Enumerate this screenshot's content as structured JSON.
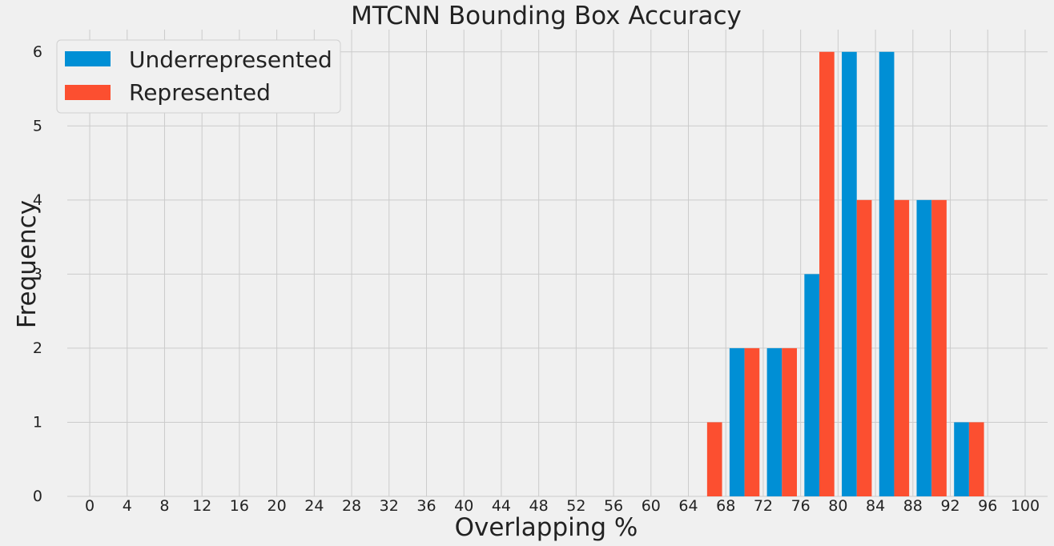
{
  "chart_data": {
    "type": "bar",
    "title": "MTCNN Bounding Box Accuracy",
    "xlabel": "Overlapping %",
    "ylabel": "Frequency",
    "x_ticks": [
      "0",
      "4",
      "8",
      "12",
      "16",
      "20",
      "24",
      "28",
      "32",
      "36",
      "40",
      "44",
      "48",
      "52",
      "56",
      "60",
      "64",
      "68",
      "72",
      "76",
      "80",
      "84",
      "88",
      "92",
      "96",
      "100"
    ],
    "y_ticks": [
      "0",
      "1",
      "2",
      "3",
      "4",
      "5",
      "6"
    ],
    "xlim": [
      -2.4,
      102.4
    ],
    "ylim": [
      0,
      6.3
    ],
    "grid": true,
    "legend_position": "top-left",
    "bin_starts": [
      64,
      68,
      72,
      76,
      80,
      84,
      88,
      92
    ],
    "bin_width": 4,
    "series": [
      {
        "name": "Underrepresented",
        "color": "#008fd5",
        "values": [
          0,
          2,
          2,
          3,
          6,
          6,
          4,
          1
        ]
      },
      {
        "name": "Represented",
        "color": "#fc4f30",
        "values": [
          1,
          2,
          2,
          6,
          4,
          4,
          4,
          1
        ]
      }
    ]
  }
}
